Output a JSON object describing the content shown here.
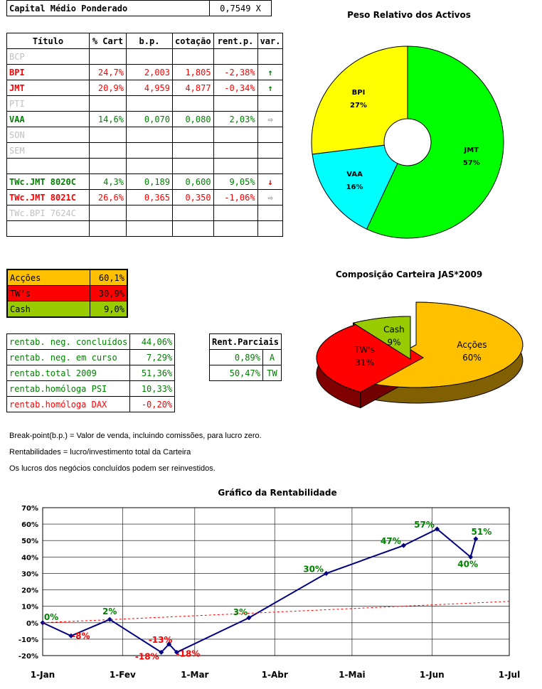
{
  "capital": {
    "label": "Capital Médio Ponderado",
    "value": "0,7549 X"
  },
  "portfolio": {
    "headers": [
      "Título",
      "% Cart",
      "b.p.",
      "cotação",
      "rent.p.",
      "var."
    ],
    "rows": [
      {
        "titulo": "BCP",
        "cart": "",
        "bp": "",
        "cot": "",
        "rent": "",
        "var": "",
        "style": "grey"
      },
      {
        "titulo": "BPI",
        "cart": "24,7%",
        "bp": "2,003",
        "cot": "1,805",
        "rent": "-2,38%",
        "var": "up",
        "style": "red"
      },
      {
        "titulo": "JMT",
        "cart": "20,9%",
        "bp": "4,959",
        "cot": "4,877",
        "rent": "-0,34%",
        "var": "up",
        "style": "red"
      },
      {
        "titulo": "PTI",
        "cart": "",
        "bp": "",
        "cot": "",
        "rent": "",
        "var": "",
        "style": "grey"
      },
      {
        "titulo": "VAA",
        "cart": "14,6%",
        "bp": "0,070",
        "cot": "0,080",
        "rent": "2,03%",
        "var": "right",
        "style": "green"
      },
      {
        "titulo": "SON",
        "cart": "",
        "bp": "",
        "cot": "",
        "rent": "",
        "var": "",
        "style": "grey"
      },
      {
        "titulo": "SEM",
        "cart": "",
        "bp": "",
        "cot": "",
        "rent": "",
        "var": "",
        "style": "grey"
      },
      {
        "titulo": "",
        "cart": "",
        "bp": "",
        "cot": "",
        "rent": "",
        "var": "",
        "style": ""
      },
      {
        "titulo": "TWc.JMT 8020C",
        "cart": "4,3%",
        "bp": "0,189",
        "cot": "0,600",
        "rent": "9,05%",
        "var": "down",
        "style": "green"
      },
      {
        "titulo": "TWc.JMT 8021C",
        "cart": "26,6%",
        "bp": "0,365",
        "cot": "0,350",
        "rent": "-1,06%",
        "var": "right",
        "style": "red"
      },
      {
        "titulo": "TWc.BPI 7624C",
        "cart": "",
        "bp": "",
        "cot": "",
        "rent": "",
        "var": "",
        "style": "grey"
      },
      {
        "titulo": "",
        "cart": "",
        "bp": "",
        "cot": "",
        "rent": "",
        "var": "",
        "style": ""
      }
    ]
  },
  "composition": [
    {
      "label": "Acções",
      "value": "60,1%",
      "bg": "#ffc000",
      "fg": "#000000"
    },
    {
      "label": "TW's",
      "value": "30,9%",
      "bg": "#ff0000",
      "fg": "#000000"
    },
    {
      "label": "Cash",
      "value": "9,0%",
      "bg": "#99cc00",
      "fg": "#000000"
    }
  ],
  "rentab": [
    {
      "label": "rentab. neg. concluídos",
      "value": "44,06%",
      "style": "green"
    },
    {
      "label": "rentab. neg. em curso",
      "value": "7,29%",
      "style": "green"
    },
    {
      "label": "rentab.total 2009",
      "value": "51,36%",
      "style": "green"
    },
    {
      "label": "rentab.homóloga PSI",
      "value": "10,33%",
      "style": "green"
    },
    {
      "label": "rentab.homóloga DAX",
      "value": "-0,20%",
      "style": "red"
    }
  ],
  "parciais": {
    "header": "Rent.Parciais",
    "rows": [
      {
        "value": "0,89%",
        "tag": "A"
      },
      {
        "value": "50,47%",
        "tag": "TW"
      }
    ]
  },
  "notes": [
    "Break-point(b.p.) = Valor de venda, incluindo comissões, para lucro zero.",
    "Rentabilidades = lucro/investimento total da Carteira",
    "Os lucros dos negócios concluídos podem ser reinvestidos."
  ],
  "chart_data": [
    {
      "type": "pie",
      "title": "Peso Relativo dos Activos",
      "donut": true,
      "slices": [
        {
          "label": "JMT",
          "value": 57,
          "color": "#00ff00"
        },
        {
          "label": "VAA",
          "value": 16,
          "color": "#00ffff"
        },
        {
          "label": "BPI",
          "value": 27,
          "color": "#ffff00"
        }
      ]
    },
    {
      "type": "pie",
      "title": "Composição Carteira JAS*2009",
      "three_d": true,
      "slices": [
        {
          "label": "Acções",
          "value": 60,
          "color": "#ffc000"
        },
        {
          "label": "TW's",
          "value": 31,
          "color": "#ff0000"
        },
        {
          "label": "Cash",
          "value": 9,
          "color": "#99cc00"
        }
      ]
    },
    {
      "type": "line",
      "title": "Gráfico da Rentabilidade",
      "xticks": [
        "1-Jan",
        "1-Fev",
        "1-Mar",
        "1-Abr",
        "1-Mai",
        "1-Jun",
        "1-Jul"
      ],
      "xlim": [
        0,
        181
      ],
      "ylim": [
        -20,
        70
      ],
      "yticks": [
        -20,
        -10,
        0,
        10,
        20,
        30,
        40,
        50,
        60,
        70
      ],
      "grid": true,
      "series": [
        {
          "color": "#000080",
          "points": [
            {
              "x": 0,
              "y": 0,
              "label": "0%",
              "lc": "#008000"
            },
            {
              "x": 11,
              "y": -8,
              "label": "-8%",
              "lc": "#ff0000"
            },
            {
              "x": 26,
              "y": 2,
              "label": "2%",
              "lc": "#008000"
            },
            {
              "x": 46,
              "y": -18,
              "label": "-18%",
              "lc": "#ff0000"
            },
            {
              "x": 49,
              "y": -13,
              "label": "-13%",
              "lc": "#ff0000"
            },
            {
              "x": 52,
              "y": -18,
              "label": "-18%",
              "lc": "#ff0000"
            },
            {
              "x": 80,
              "y": 3,
              "label": "3%",
              "lc": "#008000"
            },
            {
              "x": 110,
              "y": 30,
              "label": "30%",
              "lc": "#008000"
            },
            {
              "x": 140,
              "y": 47,
              "label": "47%",
              "lc": "#008000"
            },
            {
              "x": 153,
              "y": 57,
              "label": "57%",
              "lc": "#008000"
            },
            {
              "x": 166,
              "y": 40,
              "label": "40%",
              "lc": "#008000"
            },
            {
              "x": 168,
              "y": 51,
              "label": "51%",
              "lc": "#008000"
            }
          ]
        },
        {
          "color": "#ff0000",
          "dashed": true,
          "points": [
            {
              "x": 0,
              "y": 0
            },
            {
              "x": 181,
              "y": 13
            }
          ]
        }
      ]
    }
  ]
}
